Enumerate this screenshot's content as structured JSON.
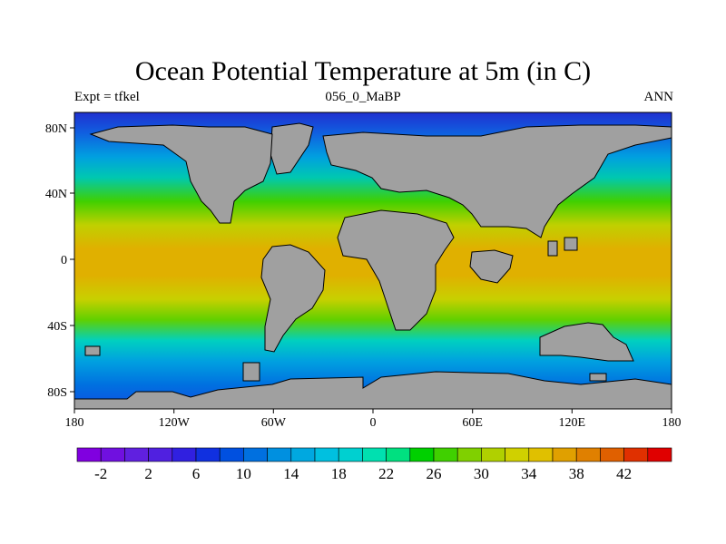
{
  "title": "Ocean Potential Temperature at 5m (in C)",
  "subtitle_left": "Expt = tfkel",
  "subtitle_center": "056_0_MaBP",
  "subtitle_right": "ANN",
  "map": {
    "lon_range": [
      -180,
      180
    ],
    "lat_range": [
      -90,
      90
    ],
    "lon_ticks": [
      "180",
      "120W",
      "60W",
      "0",
      "60E",
      "120E",
      "180"
    ],
    "lat_ticks": [
      "80N",
      "40N",
      "0",
      "40S",
      "80S"
    ],
    "land_color": "#a0a0a0"
  },
  "colorbar": {
    "labels": [
      "-2",
      "2",
      "6",
      "10",
      "14",
      "18",
      "22",
      "26",
      "30",
      "34",
      "38",
      "42"
    ],
    "colors": [
      "#8000e0",
      "#7010e0",
      "#6020e0",
      "#5020e0",
      "#3020e0",
      "#1030e0",
      "#0050e0",
      "#0070e0",
      "#0090e0",
      "#00a8e0",
      "#00c0e0",
      "#00d0d0",
      "#00e0b0",
      "#00e080",
      "#00d000",
      "#40d000",
      "#80d000",
      "#b0d000",
      "#d0d000",
      "#e0c000",
      "#e0a000",
      "#e08000",
      "#e06000",
      "#e03000",
      "#e00000"
    ]
  }
}
